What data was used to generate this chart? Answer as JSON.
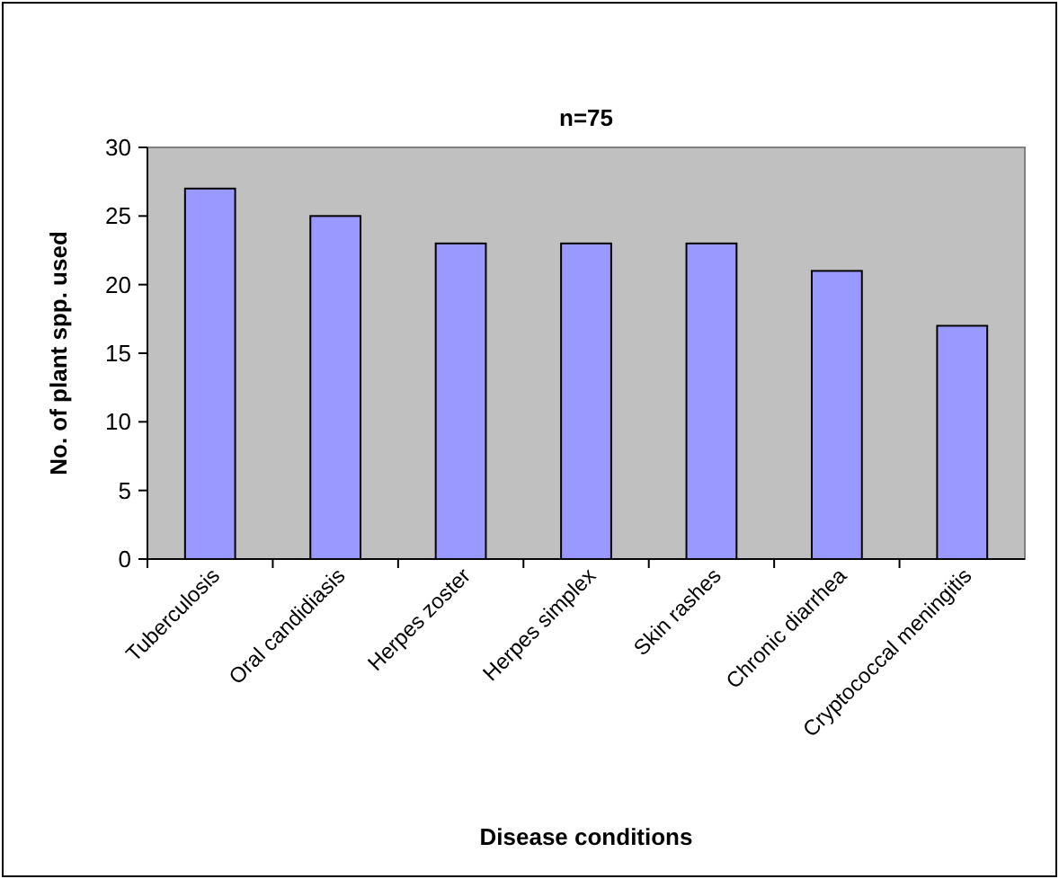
{
  "chart_data": {
    "type": "bar",
    "title": "n=75",
    "xlabel": "Disease conditions",
    "ylabel": "No. of plant spp. used",
    "categories": [
      "Tuberculosis",
      "Oral candidiasis",
      "Herpes zoster",
      "Herpes simplex",
      "Skin rashes",
      "Chronic diarrhea",
      "Cryptococcal meningitis"
    ],
    "values": [
      27,
      25,
      23,
      23,
      23,
      21,
      17
    ],
    "color": "#9999ff",
    "ylim": [
      0,
      30
    ],
    "yticks": [
      0,
      5,
      10,
      15,
      20,
      25,
      30
    ]
  }
}
